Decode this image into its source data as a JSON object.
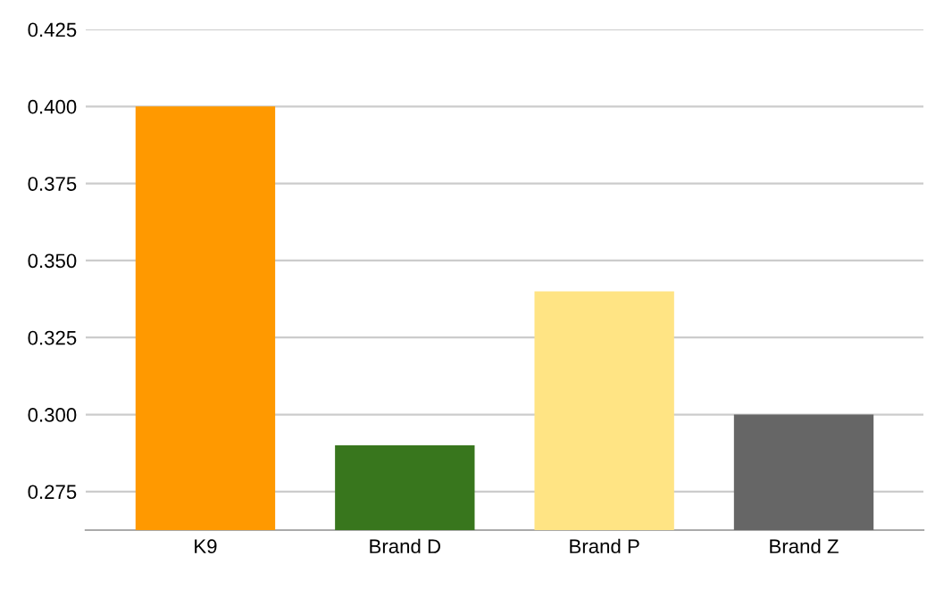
{
  "chart_data": {
    "type": "bar",
    "categories": [
      "K9",
      "Brand D",
      "Brand P",
      "Brand Z"
    ],
    "values": [
      0.4,
      0.29,
      0.34,
      0.3
    ],
    "colors": [
      "#ff9900",
      "#38761d",
      "#ffe484",
      "#666666"
    ],
    "ylim": [
      0.2625,
      0.425
    ],
    "yticks": [
      {
        "value": 0.275,
        "label": "0.275"
      },
      {
        "value": 0.3,
        "label": "0.300"
      },
      {
        "value": 0.325,
        "label": "0.325"
      },
      {
        "value": 0.35,
        "label": "0.350"
      },
      {
        "value": 0.375,
        "label": "0.375"
      },
      {
        "value": 0.4,
        "label": "0.400"
      },
      {
        "value": 0.425,
        "label": "0.425"
      }
    ],
    "grid": "y",
    "legend": false
  }
}
